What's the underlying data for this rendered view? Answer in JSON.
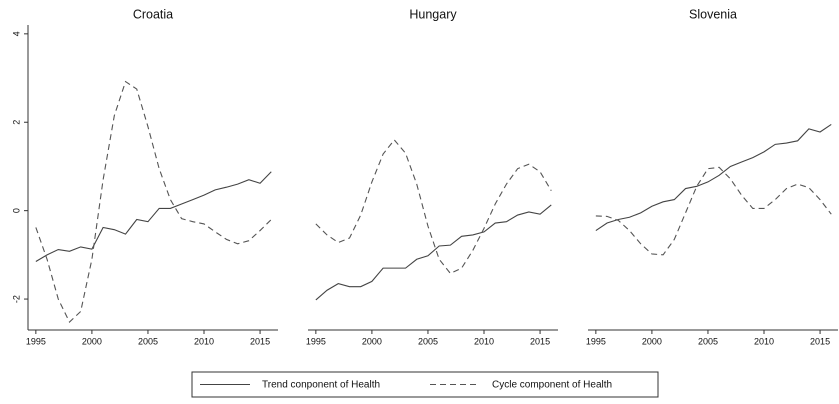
{
  "chart_data": [
    {
      "type": "line",
      "title": "Croatia",
      "x": [
        1995,
        1996,
        1997,
        1998,
        1999,
        2000,
        2001,
        2002,
        2003,
        2004,
        2005,
        2006,
        2007,
        2008,
        2009,
        2010,
        2011,
        2012,
        2013,
        2014,
        2015,
        2016
      ],
      "series": [
        {
          "name": "Trend conponent of Health",
          "color": "#444444",
          "style": "solid",
          "values": [
            -1.15,
            -1.0,
            -0.88,
            -0.92,
            -0.82,
            -0.87,
            -0.38,
            -0.43,
            -0.53,
            -0.2,
            -0.25,
            0.05,
            0.05,
            0.15,
            0.25,
            0.35,
            0.47,
            0.53,
            0.6,
            0.7,
            0.62,
            0.88
          ]
        },
        {
          "name": "Cycle component of Health",
          "color": "#555555",
          "style": "dashed",
          "values": [
            -0.38,
            -1.1,
            -2.0,
            -2.52,
            -2.28,
            -1.1,
            0.7,
            2.15,
            2.92,
            2.75,
            1.9,
            0.95,
            0.25,
            -0.18,
            -0.25,
            -0.3,
            -0.48,
            -0.65,
            -0.75,
            -0.68,
            -0.45,
            -0.2
          ]
        }
      ],
      "xlim": [
        1994.3,
        2016.6
      ],
      "xticks": [
        1995,
        2000,
        2005,
        2010,
        2015
      ],
      "ylim": [
        -2.7,
        4.2
      ],
      "yticks": [
        -2,
        0,
        2,
        4
      ]
    },
    {
      "type": "line",
      "title": "Hungary",
      "x": [
        1995,
        1996,
        1997,
        1998,
        1999,
        2000,
        2001,
        2002,
        2003,
        2004,
        2005,
        2006,
        2007,
        2008,
        2009,
        2010,
        2011,
        2012,
        2013,
        2014,
        2015,
        2016
      ],
      "series": [
        {
          "name": "Trend conponent of Health",
          "color": "#444444",
          "style": "solid",
          "values": [
            -2.02,
            -1.8,
            -1.65,
            -1.72,
            -1.72,
            -1.6,
            -1.3,
            -1.3,
            -1.3,
            -1.1,
            -1.02,
            -0.8,
            -0.78,
            -0.58,
            -0.55,
            -0.48,
            -0.28,
            -0.25,
            -0.1,
            -0.03,
            -0.08,
            0.13
          ]
        },
        {
          "name": "Cycle component of Health",
          "color": "#555555",
          "style": "dashed",
          "values": [
            -0.3,
            -0.55,
            -0.72,
            -0.62,
            -0.1,
            0.65,
            1.28,
            1.6,
            1.3,
            0.6,
            -0.35,
            -1.1,
            -1.42,
            -1.3,
            -0.9,
            -0.4,
            0.15,
            0.6,
            0.95,
            1.05,
            0.88,
            0.45
          ]
        }
      ],
      "xlim": [
        1994.3,
        2016.6
      ],
      "xticks": [
        1995,
        2000,
        2005,
        2010,
        2015
      ],
      "ylim": [
        -2.7,
        4.2
      ]
    },
    {
      "type": "line",
      "title": "Slovenia",
      "x": [
        1995,
        1996,
        1997,
        1998,
        1999,
        2000,
        2001,
        2002,
        2003,
        2004,
        2005,
        2006,
        2007,
        2008,
        2009,
        2010,
        2011,
        2012,
        2013,
        2014,
        2015,
        2016
      ],
      "series": [
        {
          "name": "Trend conponent of Health",
          "color": "#444444",
          "style": "solid",
          "values": [
            -0.45,
            -0.28,
            -0.2,
            -0.15,
            -0.05,
            0.1,
            0.2,
            0.25,
            0.5,
            0.55,
            0.65,
            0.8,
            1.0,
            1.1,
            1.2,
            1.33,
            1.5,
            1.53,
            1.58,
            1.85,
            1.78,
            1.95
          ]
        },
        {
          "name": "Cycle component of Health",
          "color": "#555555",
          "style": "dashed",
          "values": [
            -0.12,
            -0.13,
            -0.22,
            -0.45,
            -0.75,
            -0.98,
            -1.0,
            -0.65,
            -0.05,
            0.55,
            0.95,
            0.98,
            0.72,
            0.35,
            0.05,
            0.05,
            0.25,
            0.5,
            0.6,
            0.52,
            0.25,
            -0.08
          ]
        }
      ],
      "xlim": [
        1994.3,
        2016.6
      ],
      "xticks": [
        1995,
        2000,
        2005,
        2010,
        2015
      ],
      "ylim": [
        -2.7,
        4.2
      ]
    }
  ]
}
